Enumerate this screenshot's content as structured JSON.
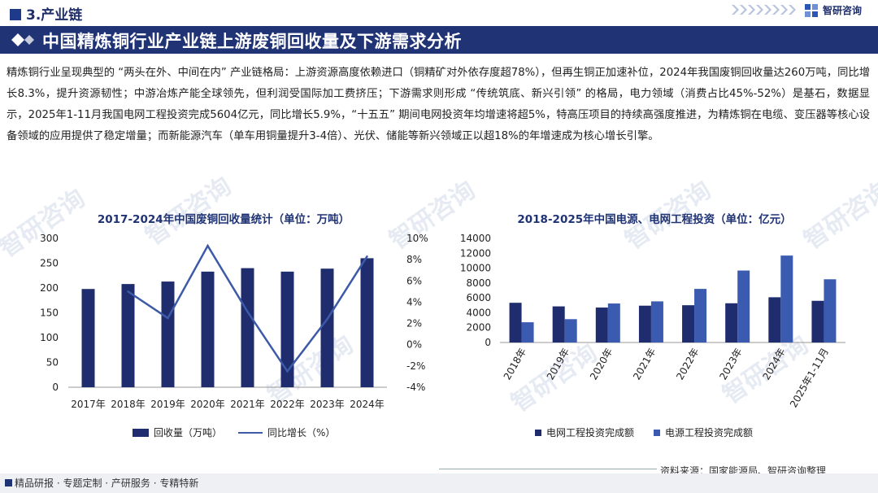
{
  "header": {
    "section": "3.产业链",
    "logo_text": "智研咨询",
    "banner_title": "中国精炼铜行业产业链上游废铜回收量及下游需求分析"
  },
  "paragraph": "精炼铜行业呈现典型的 “两头在外、中间在内” 产业链格局：上游资源高度依赖进口（铜精矿对外依存度超78%），但再生铜正加速补位，2024年我国废铜回收量达260万吨，同比增长8.3%，提升资源韧性；中游冶炼产能全球领先，但利润受国际加工费挤压；下游需求则形成 “传统筑底、新兴引领” 的格局，电力领域（消费占比45%-52%）是基石，数据显示，2025年1-11月我国电网工程投资完成5604亿元，同比增长5.9%，“十五五” 期间电网投资年均增速将超5%，特高压项目的持续高强度推进，为精炼铜在电缆、变压器等核心设备领域的应用提供了稳定增量；而新能源汽车（单车用铜量提升3-4倍）、光伏、储能等新兴领域正以超18%的年增速成为核心增长引擎。",
  "watermark": "智研咨询",
  "footer": {
    "text": "精品研报 · 专题定制 · 产研服务 · 专精特新",
    "source": "资料来源：国家能源局、智研咨询整理"
  },
  "chart_data": [
    {
      "type": "bar",
      "title": "2017-2024年中国废铜回收量统计（单位：万吨）",
      "categories": [
        "2017年",
        "2018年",
        "2019年",
        "2020年",
        "2021年",
        "2022年",
        "2023年",
        "2024年"
      ],
      "series": [
        {
          "name": "回收量（万吨）",
          "type": "bar",
          "axis": "left",
          "color": "#1f2d6e",
          "values": [
            198,
            208,
            213,
            233,
            240,
            233,
            239,
            260
          ]
        },
        {
          "name": "同比增长（%）",
          "type": "line",
          "axis": "right",
          "color": "#3d5aa8",
          "values": [
            null,
            5.0,
            2.5,
            9.3,
            3.1,
            -2.5,
            2.4,
            8.3
          ]
        }
      ],
      "ylim": [
        0,
        300
      ],
      "yticks": [
        "0",
        "50",
        "100",
        "150",
        "200",
        "250",
        "300"
      ],
      "y2lim": [
        -4,
        10
      ],
      "y2ticks": [
        "-4%",
        "-2%",
        "0%",
        "2%",
        "4%",
        "6%",
        "8%",
        "10%"
      ],
      "legend": "bottom",
      "grid": false
    },
    {
      "type": "bar",
      "title": "2018-2025年中国电源、电网工程投资（单位：亿元）",
      "categories": [
        "2018年",
        "2019年",
        "2020年",
        "2021年",
        "2022年",
        "2023年",
        "2024年",
        "2025年1-11月"
      ],
      "series": [
        {
          "name": "电网工程投资完成额",
          "color": "#1f2d6e",
          "values": [
            5340,
            4856,
            4699,
            4951,
            5012,
            5275,
            6083,
            5604
          ]
        },
        {
          "name": "电源工程投资完成额",
          "color": "#3b5bb0",
          "values": [
            2721,
            3139,
            5244,
            5530,
            7208,
            9675,
            11687,
            8500
          ]
        }
      ],
      "ylim": [
        0,
        14000
      ],
      "yticks": [
        "0",
        "2000",
        "4000",
        "6000",
        "8000",
        "10000",
        "12000",
        "14000"
      ],
      "legend": "bottom",
      "grid": false
    }
  ]
}
